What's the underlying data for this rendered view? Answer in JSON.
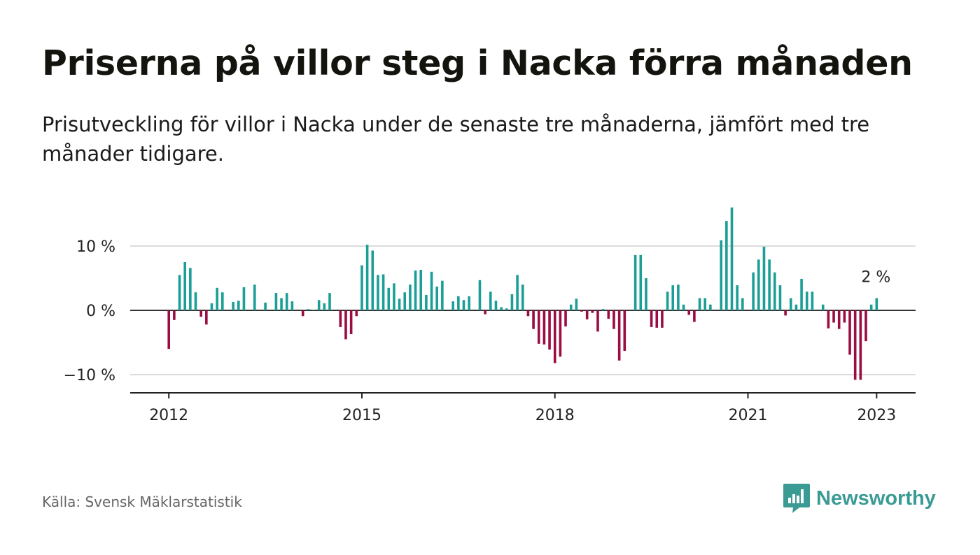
{
  "title": "Priserna på villor steg i Nacka förra månaden",
  "subtitle": "Prisutveckling för villor i Nacka under de senaste tre månaderna, jämfört med tre månader tidigare.",
  "source": "Källa: Svensk Mäklarstatistik",
  "brand": "Newsworthy",
  "colors": {
    "positive": "#1a9e96",
    "negative": "#9b0c42",
    "logo": "#3a9a94"
  },
  "chart_data": {
    "type": "bar",
    "title": "Priserna på villor steg i Nacka förra månaden",
    "xlabel": "",
    "ylabel": "",
    "ylim": [
      -12.7,
      17
    ],
    "yticks": [
      -10,
      0,
      10
    ],
    "ytick_labels": [
      "−10 %",
      "0 %",
      "10 %"
    ],
    "xticks": [
      "2012",
      "2015",
      "2018",
      "2021",
      "2023"
    ],
    "annotation": "2 %",
    "start": "2012-01",
    "values": [
      -6,
      -1.5,
      5.5,
      7.5,
      6.6,
      2.8,
      -1,
      -2.2,
      1.1,
      3.5,
      2.8,
      0,
      1.3,
      1.5,
      3.6,
      0,
      4,
      0,
      1.2,
      0,
      2.7,
      1.9,
      2.7,
      1.4,
      0,
      -0.9,
      0.2,
      0.1,
      1.6,
      1.1,
      2.7,
      0,
      -2.6,
      -4.5,
      -3.7,
      -0.9,
      7,
      10.2,
      9.3,
      5.5,
      5.6,
      3.5,
      4.2,
      1.8,
      2.8,
      4,
      6.2,
      6.3,
      2.4,
      6,
      3.7,
      4.6,
      0,
      1.4,
      2.2,
      1.6,
      2.2,
      0,
      4.7,
      -0.6,
      2.9,
      1.5,
      0.5,
      0.3,
      2.5,
      5.5,
      4,
      -0.9,
      -2.9,
      -5.2,
      -5.3,
      -6.1,
      -8.2,
      -7.2,
      -2.5,
      0.9,
      1.8,
      -0.2,
      -1.4,
      -0.4,
      -3.3,
      0.2,
      -1.3,
      -2.9,
      -7.8,
      -6.3,
      0,
      8.6,
      8.6,
      5,
      -2.6,
      -2.7,
      -2.7,
      2.9,
      3.9,
      4,
      0.9,
      -0.7,
      -1.8,
      1.9,
      1.9,
      0.9,
      0,
      10.9,
      13.9,
      16,
      3.9,
      1.9,
      0,
      5.9,
      7.9,
      9.9,
      7.9,
      5.9,
      3.9,
      -0.8,
      1.9,
      0.9,
      4.9,
      2.9,
      2.9,
      0,
      0.9,
      -2.8,
      -1.9,
      -2.9,
      -1.9,
      -6.9,
      -10.8,
      -10.8,
      -4.8,
      0.9,
      1.9
    ]
  }
}
